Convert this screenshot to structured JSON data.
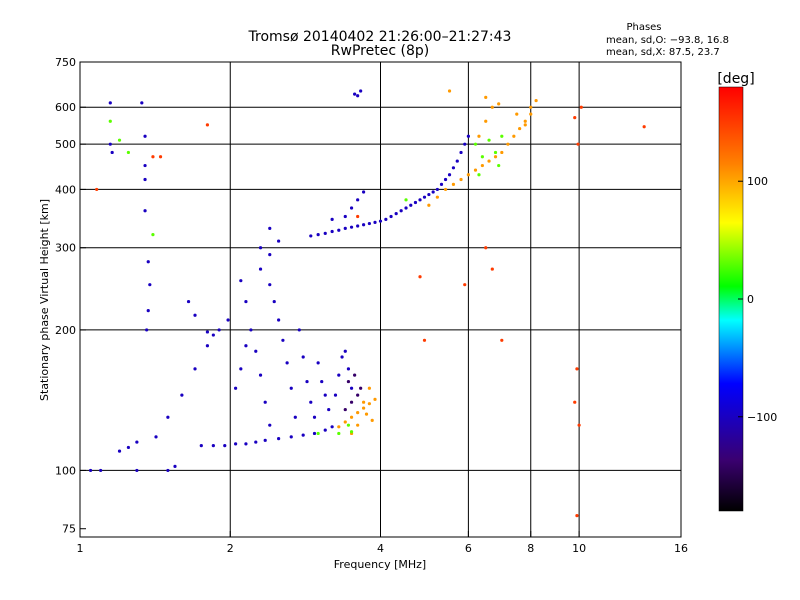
{
  "chart_data": {
    "type": "scatter",
    "title": "Tromsø 20140402 21:26:00–21:27:43",
    "subtitle": "RwPretec (8p)",
    "xlabel": "Frequency [MHz]",
    "ylabel": "Stationary phase Virtual Height [km]",
    "x_scale": "log",
    "y_scale": "log",
    "xlim": [
      1,
      16
    ],
    "ylim": [
      72,
      750
    ],
    "x_ticks": [
      1,
      2,
      4,
      6,
      8,
      10,
      16
    ],
    "x_tick_labels": [
      "1",
      "2",
      "4",
      "6",
      "8",
      "10",
      "16"
    ],
    "x_gridlines": [
      2,
      4,
      6,
      8,
      10
    ],
    "y_ticks": [
      75,
      100,
      200,
      300,
      400,
      500,
      600,
      750
    ],
    "y_tick_labels": [
      "75",
      "100",
      "200",
      "300",
      "400",
      "500",
      "600",
      "750"
    ],
    "y_gridlines": [
      100,
      200,
      300,
      400,
      500,
      600
    ],
    "grid": true,
    "phases_box": {
      "title": "Phases",
      "line_o": "mean, sd,O: −93.8, 16.8",
      "line_x": "mean, sd,X:  87.5, 23.7"
    },
    "colorbar": {
      "label": "[deg]",
      "range": [
        -180,
        180
      ],
      "ticks": [
        100,
        0,
        -100
      ],
      "tick_labels": [
        "100",
        "0",
        "−100"
      ]
    },
    "series": [
      {
        "points": [
          [
            1.75,
            113
          ],
          [
            1.85,
            113
          ],
          [
            1.95,
            113
          ],
          [
            2.05,
            114
          ],
          [
            2.15,
            114
          ],
          [
            2.25,
            115
          ],
          [
            2.35,
            116
          ],
          [
            2.5,
            117
          ],
          [
            2.65,
            118
          ],
          [
            2.8,
            119
          ],
          [
            2.95,
            120
          ],
          [
            3.1,
            122
          ],
          [
            3.2,
            124
          ],
          [
            1.42,
            118
          ],
          [
            1.5,
            130
          ],
          [
            1.6,
            145
          ],
          [
            1.7,
            165
          ],
          [
            1.8,
            185
          ],
          [
            1.9,
            200
          ],
          [
            1.98,
            210
          ],
          [
            2.2,
            200
          ],
          [
            2.25,
            180
          ],
          [
            2.3,
            160
          ],
          [
            2.35,
            140
          ],
          [
            2.4,
            125
          ],
          [
            2.4,
            250
          ],
          [
            2.45,
            230
          ],
          [
            2.5,
            210
          ],
          [
            2.55,
            190
          ],
          [
            2.6,
            170
          ],
          [
            2.65,
            150
          ],
          [
            2.7,
            130
          ],
          [
            2.75,
            200
          ],
          [
            2.8,
            175
          ],
          [
            2.85,
            155
          ],
          [
            2.9,
            140
          ],
          [
            2.95,
            130
          ],
          [
            3.0,
            170
          ],
          [
            3.05,
            155
          ],
          [
            3.1,
            145
          ],
          [
            3.15,
            135
          ],
          [
            3.25,
            145
          ],
          [
            3.3,
            160
          ],
          [
            3.35,
            175
          ],
          [
            3.4,
            180
          ],
          [
            3.45,
            165
          ],
          [
            3.5,
            150
          ],
          [
            2.05,
            150
          ],
          [
            2.1,
            165
          ],
          [
            2.15,
            185
          ],
          [
            2.15,
            230
          ],
          [
            2.1,
            255
          ],
          [
            2.3,
            270
          ],
          [
            2.4,
            290
          ],
          [
            1.65,
            230
          ],
          [
            1.7,
            215
          ],
          [
            1.8,
            198
          ],
          [
            1.85,
            195
          ],
          [
            2.9,
            318
          ],
          [
            3.0,
            320
          ],
          [
            3.1,
            322
          ],
          [
            3.2,
            325
          ],
          [
            3.3,
            327
          ],
          [
            3.4,
            330
          ],
          [
            3.5,
            332
          ],
          [
            3.6,
            334
          ],
          [
            3.7,
            336
          ],
          [
            3.8,
            338
          ],
          [
            3.9,
            340
          ],
          [
            4.0,
            342
          ],
          [
            4.1,
            345
          ],
          [
            4.2,
            350
          ],
          [
            4.3,
            355
          ],
          [
            4.4,
            360
          ],
          [
            4.5,
            365
          ],
          [
            4.6,
            370
          ],
          [
            4.7,
            375
          ],
          [
            4.8,
            380
          ],
          [
            4.9,
            385
          ],
          [
            5.0,
            390
          ],
          [
            5.1,
            395
          ],
          [
            5.2,
            400
          ],
          [
            5.3,
            410
          ],
          [
            5.4,
            420
          ],
          [
            5.5,
            430
          ],
          [
            5.6,
            445
          ],
          [
            5.7,
            460
          ],
          [
            5.8,
            480
          ],
          [
            5.9,
            500
          ],
          [
            6.0,
            520
          ],
          [
            3.2,
            345
          ],
          [
            3.4,
            350
          ],
          [
            3.5,
            365
          ],
          [
            3.6,
            380
          ],
          [
            3.7,
            395
          ],
          [
            3.55,
            640
          ],
          [
            3.6,
            635
          ],
          [
            3.65,
            650
          ],
          [
            1.15,
            613
          ],
          [
            1.33,
            613
          ],
          [
            1.35,
            520
          ],
          [
            1.35,
            450
          ],
          [
            1.35,
            420
          ],
          [
            1.35,
            360
          ],
          [
            1.37,
            280
          ],
          [
            1.38,
            250
          ],
          [
            1.37,
            220
          ],
          [
            1.36,
            200
          ],
          [
            1.15,
            500
          ],
          [
            1.16,
            480
          ],
          [
            1.3,
            100
          ],
          [
            1.5,
            100
          ],
          [
            1.55,
            102
          ],
          [
            1.1,
            100
          ],
          [
            1.05,
            100
          ],
          [
            1.2,
            110
          ],
          [
            1.25,
            112
          ],
          [
            1.3,
            115
          ],
          [
            2.4,
            330
          ],
          [
            2.5,
            310
          ],
          [
            2.3,
            300
          ]
        ],
        "color_value": -100
      },
      {
        "points": [
          [
            3.3,
            124
          ],
          [
            3.4,
            127
          ],
          [
            3.5,
            130
          ],
          [
            3.6,
            133
          ],
          [
            3.7,
            136
          ],
          [
            3.8,
            139
          ],
          [
            3.9,
            142
          ],
          [
            3.5,
            120
          ],
          [
            3.6,
            125
          ],
          [
            3.7,
            140
          ],
          [
            3.8,
            150
          ],
          [
            3.75,
            132
          ],
          [
            3.85,
            128
          ],
          [
            5.0,
            370
          ],
          [
            5.2,
            385
          ],
          [
            5.4,
            400
          ],
          [
            5.6,
            410
          ],
          [
            5.8,
            420
          ],
          [
            6.0,
            430
          ],
          [
            6.2,
            440
          ],
          [
            6.4,
            450
          ],
          [
            6.6,
            460
          ],
          [
            6.8,
            470
          ],
          [
            7.0,
            480
          ],
          [
            7.2,
            500
          ],
          [
            7.4,
            520
          ],
          [
            7.6,
            540
          ],
          [
            7.8,
            560
          ],
          [
            8.0,
            580
          ],
          [
            6.3,
            520
          ],
          [
            6.5,
            560
          ],
          [
            6.7,
            600
          ],
          [
            6.9,
            610
          ],
          [
            6.5,
            630
          ],
          [
            7.5,
            580
          ],
          [
            8.0,
            600
          ],
          [
            8.2,
            620
          ],
          [
            5.5,
            650
          ],
          [
            7.8,
            550
          ]
        ],
        "color_value": 105
      },
      {
        "points": [
          [
            6.2,
            500
          ],
          [
            6.4,
            470
          ],
          [
            6.6,
            510
          ],
          [
            6.8,
            480
          ],
          [
            7.0,
            520
          ],
          [
            6.9,
            450
          ],
          [
            6.3,
            430
          ],
          [
            1.15,
            560
          ],
          [
            1.2,
            510
          ],
          [
            1.25,
            480
          ],
          [
            1.4,
            320
          ],
          [
            3.0,
            120
          ],
          [
            4.5,
            380
          ],
          [
            3.3,
            120
          ],
          [
            3.5,
            121
          ],
          [
            3.45,
            125
          ]
        ],
        "color_value": 30
      },
      {
        "points": [
          [
            1.08,
            400
          ],
          [
            1.4,
            470
          ],
          [
            1.45,
            470
          ],
          [
            1.8,
            550
          ],
          [
            3.6,
            350
          ],
          [
            4.9,
            190
          ],
          [
            4.8,
            260
          ],
          [
            5.9,
            250
          ],
          [
            6.7,
            270
          ],
          [
            7.0,
            190
          ],
          [
            9.8,
            140
          ],
          [
            9.9,
            165
          ],
          [
            9.8,
            570
          ],
          [
            9.95,
            500
          ],
          [
            10.0,
            125
          ],
          [
            9.9,
            80
          ],
          [
            13.5,
            545
          ],
          [
            10.1,
            600
          ],
          [
            6.5,
            300
          ]
        ],
        "color_value": 150
      },
      {
        "points": [
          [
            3.4,
            135
          ],
          [
            3.5,
            140
          ],
          [
            3.6,
            145
          ],
          [
            3.45,
            155
          ],
          [
            3.55,
            160
          ],
          [
            3.65,
            150
          ]
        ],
        "color_value": -140
      }
    ]
  }
}
